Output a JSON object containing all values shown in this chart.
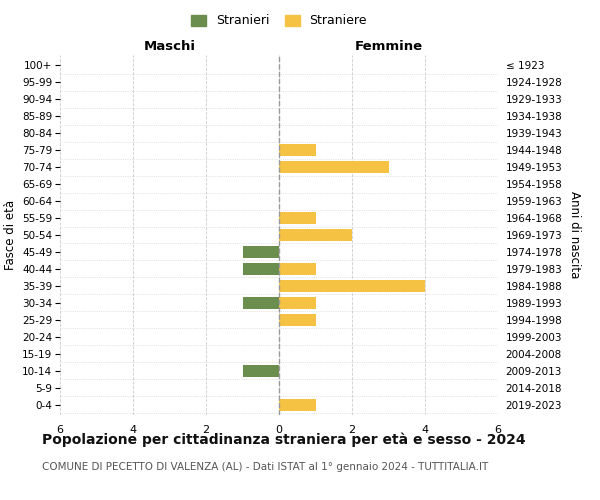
{
  "age_groups": [
    "100+",
    "95-99",
    "90-94",
    "85-89",
    "80-84",
    "75-79",
    "70-74",
    "65-69",
    "60-64",
    "55-59",
    "50-54",
    "45-49",
    "40-44",
    "35-39",
    "30-34",
    "25-29",
    "20-24",
    "15-19",
    "10-14",
    "5-9",
    "0-4"
  ],
  "birth_years": [
    "≤ 1923",
    "1924-1928",
    "1929-1933",
    "1934-1938",
    "1939-1943",
    "1944-1948",
    "1949-1953",
    "1954-1958",
    "1959-1963",
    "1964-1968",
    "1969-1973",
    "1974-1978",
    "1979-1983",
    "1984-1988",
    "1989-1993",
    "1994-1998",
    "1999-2003",
    "2004-2008",
    "2009-2013",
    "2014-2018",
    "2019-2023"
  ],
  "males": [
    0,
    0,
    0,
    0,
    0,
    0,
    0,
    0,
    0,
    0,
    0,
    1,
    1,
    0,
    1,
    0,
    0,
    0,
    1,
    0,
    0
  ],
  "females": [
    0,
    0,
    0,
    0,
    0,
    1,
    3,
    0,
    0,
    1,
    2,
    0,
    1,
    4,
    1,
    1,
    0,
    0,
    0,
    0,
    1
  ],
  "male_color": "#6B8E4E",
  "female_color": "#F5C244",
  "xlim": 6,
  "title": "Popolazione per cittadinanza straniera per età e sesso - 2024",
  "subtitle": "COMUNE DI PECETTO DI VALENZA (AL) - Dati ISTAT al 1° gennaio 2024 - TUTTITALIA.IT",
  "left_label": "Maschi",
  "right_label": "Femmine",
  "ylabel_left": "Fasce di età",
  "ylabel_right": "Anni di nascita",
  "legend_males": "Stranieri",
  "legend_females": "Straniere",
  "bg_color": "#ffffff",
  "grid_color": "#cccccc",
  "title_fontsize": 10,
  "subtitle_fontsize": 7.5,
  "bar_height": 0.7
}
